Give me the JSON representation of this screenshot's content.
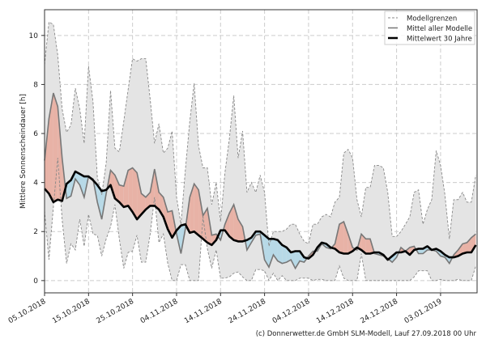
{
  "chart_data": {
    "type": "line",
    "ylabel": "Mittlere Sonnenscheindauer [h]",
    "xlabel": "",
    "start_date": "05.10.2018",
    "x_step": "1 day",
    "xlim_days": [
      0,
      98.3
    ],
    "ylim": [
      -0.5,
      11.05
    ],
    "yticks": [
      0,
      2,
      4,
      6,
      8,
      10
    ],
    "xtick_days": [
      0,
      10,
      20,
      30,
      40,
      50,
      60,
      70,
      80,
      90
    ],
    "xtick_labels": [
      "05.10.2018",
      "15.10.2018",
      "25.10.2018",
      "04.11.2018",
      "14.11.2018",
      "24.11.2018",
      "04.12.2018",
      "14.12.2018",
      "24.12.2018",
      "03.01.2019"
    ],
    "grid": true,
    "legend_position": "top-right",
    "legend": [
      "Modellgrenzen",
      "Mittel aller Modelle",
      "Mittelwert 30 Jahre"
    ],
    "series": [
      {
        "name": "Modellgrenzen max",
        "values": [
          8.8,
          10.55,
          10.45,
          9.2,
          7.0,
          6.05,
          6.35,
          7.85,
          7.0,
          5.6,
          8.75,
          7.3,
          4.2,
          3.5,
          4.8,
          7.75,
          5.4,
          5.25,
          6.5,
          7.8,
          9.05,
          8.95,
          9.05,
          9.05,
          7.4,
          5.6,
          6.4,
          5.2,
          5.4,
          6.1,
          3.4,
          2.3,
          4.5,
          6.5,
          8.05,
          5.5,
          4.6,
          4.6,
          3.1,
          4.0,
          2.4,
          4.4,
          5.8,
          7.55,
          5.0,
          6.1,
          3.6,
          4.0,
          3.6,
          4.3,
          3.6,
          1.4,
          2.0,
          2.0,
          2.0,
          2.1,
          2.3,
          2.3,
          1.9,
          1.6,
          1.5,
          2.3,
          2.3,
          2.6,
          2.7,
          2.6,
          3.2,
          3.4,
          5.2,
          5.35,
          5.0,
          3.3,
          2.6,
          3.8,
          3.8,
          4.7,
          4.7,
          4.6,
          3.6,
          1.8,
          1.8,
          2.0,
          2.3,
          2.6,
          3.6,
          3.7,
          2.3,
          2.9,
          3.3,
          5.3,
          4.7,
          3.5,
          1.7,
          3.3,
          3.3,
          3.6,
          3.2,
          3.2,
          4.3
        ]
      },
      {
        "name": "Modellgrenzen min",
        "values": [
          2.85,
          0.85,
          3.0,
          5.0,
          2.5,
          0.7,
          1.5,
          1.25,
          2.5,
          1.4,
          2.7,
          1.9,
          1.85,
          1.0,
          1.7,
          2.2,
          3.1,
          1.7,
          0.5,
          1.15,
          1.2,
          1.85,
          0.75,
          0.75,
          1.9,
          3.4,
          1.55,
          1.9,
          0.7,
          0.0,
          0.0,
          0.65,
          0.65,
          0.0,
          0.0,
          0.0,
          2.6,
          1.3,
          0.5,
          1.25,
          0.1,
          0.1,
          0.15,
          0.3,
          0.35,
          0.15,
          0.0,
          0.0,
          0.45,
          0.45,
          0.4,
          0.0,
          0.3,
          0.0,
          0.2,
          0.0,
          0.0,
          0.0,
          0.1,
          0.1,
          0.1,
          0.0,
          0.05,
          0.05,
          0.0,
          0.0,
          0.0,
          0.6,
          0.1,
          0.0,
          0.0,
          0.0,
          1.1,
          0.0,
          0.0,
          0.0,
          0.0,
          0.0,
          0.0,
          0.0,
          0.0,
          0.0,
          0.0,
          0.0,
          0.15,
          0.4,
          0.4,
          0.4,
          0.0,
          0.0,
          0.05,
          0.0,
          0.0,
          0.0,
          0.05,
          0.0,
          0.0,
          0.0,
          0.6
        ]
      },
      {
        "name": "Mittel aller Modelle",
        "values": [
          4.9,
          6.6,
          7.65,
          7.1,
          5.0,
          3.35,
          3.45,
          4.15,
          3.9,
          3.4,
          4.25,
          4.15,
          3.2,
          2.5,
          3.55,
          4.5,
          4.3,
          3.9,
          3.85,
          4.5,
          4.6,
          4.4,
          3.55,
          3.4,
          3.6,
          4.55,
          3.6,
          3.4,
          2.8,
          2.85,
          1.9,
          1.1,
          2.1,
          3.4,
          3.95,
          3.7,
          2.65,
          2.95,
          1.85,
          1.9,
          1.65,
          2.3,
          2.75,
          3.1,
          2.5,
          2.2,
          1.25,
          1.55,
          1.85,
          1.9,
          0.85,
          0.55,
          1.05,
          0.8,
          0.7,
          0.75,
          0.85,
          0.5,
          0.8,
          0.75,
          1.0,
          1.2,
          1.2,
          1.5,
          1.35,
          1.3,
          1.5,
          2.3,
          2.4,
          1.9,
          1.35,
          1.25,
          1.9,
          1.7,
          1.7,
          1.1,
          1.05,
          1.0,
          0.9,
          0.75,
          0.95,
          1.35,
          1.2,
          1.35,
          1.4,
          1.1,
          1.1,
          1.25,
          1.25,
          1.2,
          1.0,
          0.95,
          0.7,
          1.05,
          1.25,
          1.5,
          1.55,
          1.75,
          1.9
        ]
      },
      {
        "name": "Mittelwert 30 Jahre",
        "values": [
          3.75,
          3.55,
          3.2,
          3.3,
          3.25,
          3.95,
          4.1,
          4.45,
          4.35,
          4.25,
          4.25,
          4.1,
          3.9,
          3.65,
          3.7,
          3.9,
          3.35,
          3.2,
          3.0,
          3.05,
          2.8,
          2.5,
          2.7,
          2.9,
          3.05,
          3.05,
          2.9,
          2.6,
          2.1,
          1.75,
          2.05,
          2.25,
          2.3,
          1.95,
          2.0,
          1.85,
          1.7,
          1.55,
          1.45,
          1.65,
          2.05,
          2.05,
          1.8,
          1.65,
          1.6,
          1.6,
          1.65,
          1.75,
          2.0,
          2.0,
          1.85,
          1.7,
          1.7,
          1.65,
          1.45,
          1.35,
          1.15,
          1.2,
          1.2,
          0.95,
          0.9,
          1.05,
          1.35,
          1.55,
          1.5,
          1.35,
          1.3,
          1.15,
          1.1,
          1.1,
          1.2,
          1.35,
          1.25,
          1.1,
          1.1,
          1.15,
          1.15,
          1.05,
          0.85,
          1.0,
          1.15,
          1.15,
          1.2,
          1.05,
          1.25,
          1.3,
          1.3,
          1.4,
          1.25,
          1.3,
          1.2,
          1.05,
          0.95,
          0.95,
          1.0,
          1.1,
          1.15,
          1.15,
          1.45
        ]
      }
    ],
    "colors": {
      "band": "#e4e4e4",
      "band_edge": "#888888",
      "above": "#e8b2a6",
      "below": "#b7d9e7",
      "mean": "#777777",
      "climate": "#000000"
    },
    "footer": "(c) Donnerwetter.de GmbH SLM-Modell, Lauf 27.09.2018 00 Uhr"
  }
}
